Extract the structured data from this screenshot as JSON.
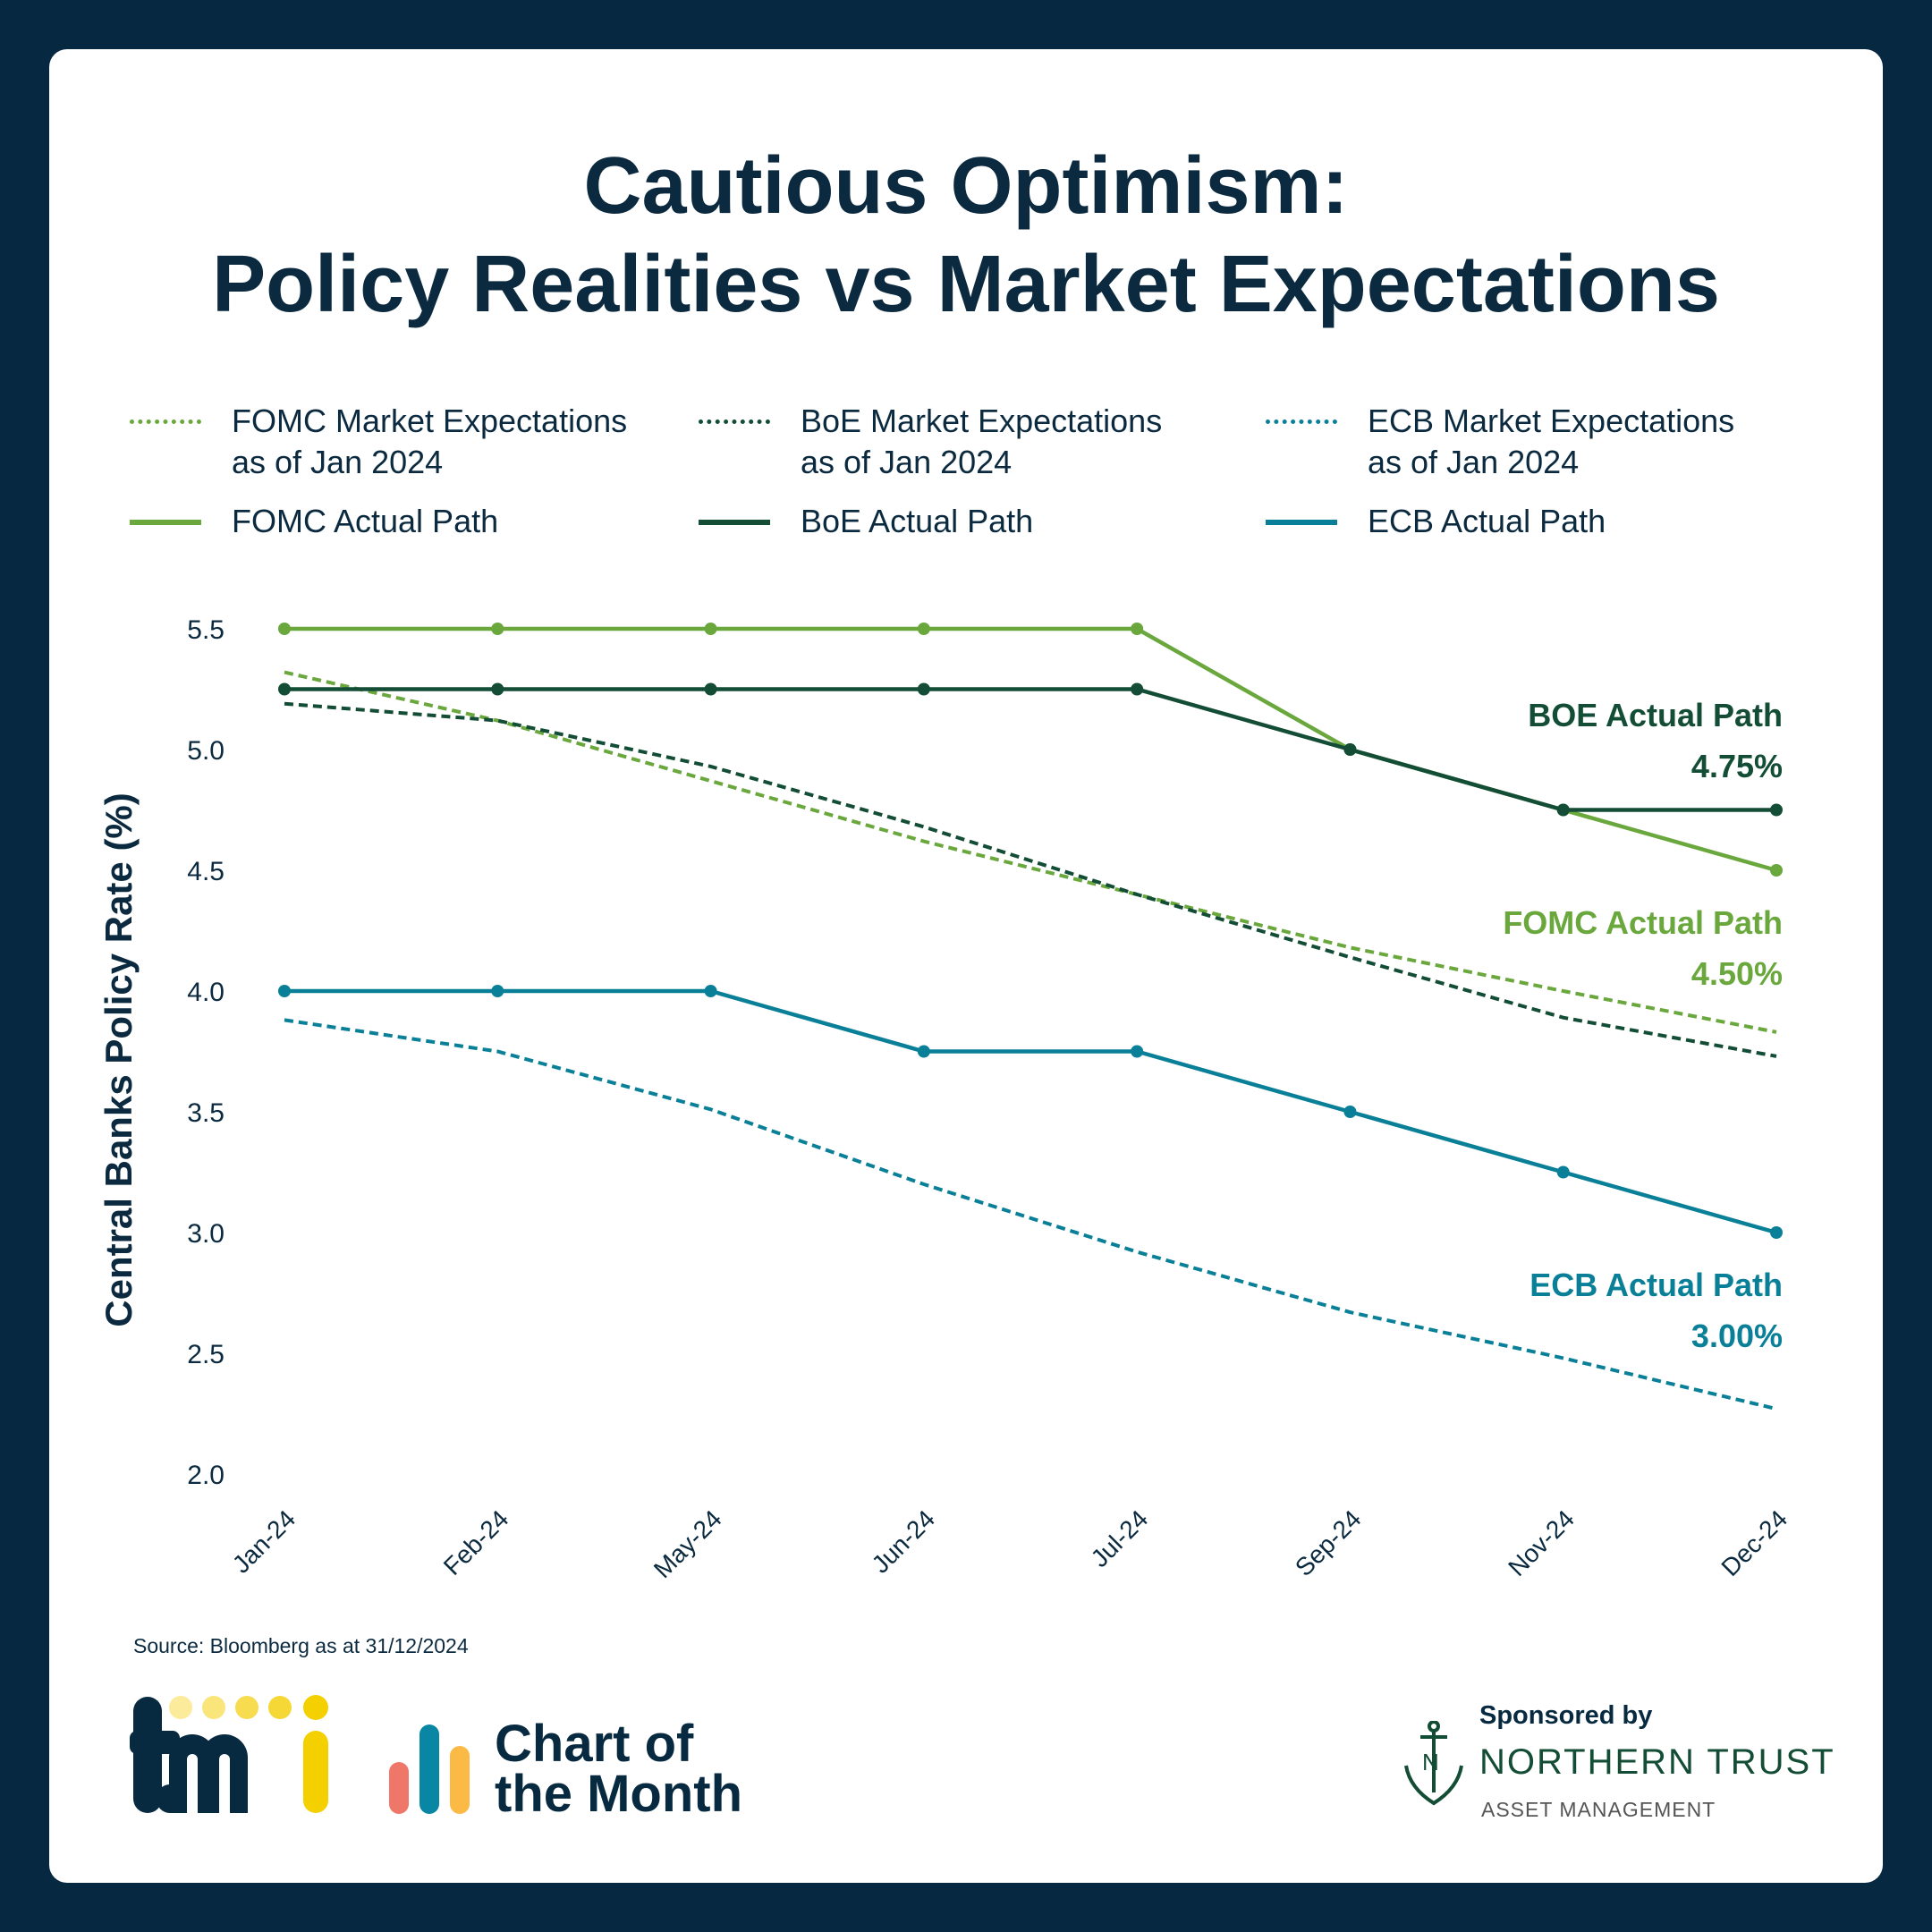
{
  "title": {
    "line1": "Cautious Optimism:",
    "line2": "Policy Realities vs Market Expectations"
  },
  "legend": [
    {
      "label_line1": "FOMC Market Expectations",
      "label_line2": "as of Jan 2024",
      "style": "dotted",
      "color": "#6aa83e"
    },
    {
      "label_line1": "BoE Market Expectations",
      "label_line2": "as of Jan 2024",
      "style": "dotted",
      "color": "#134d36"
    },
    {
      "label_line1": "ECB Market Expectations",
      "label_line2": "as of Jan 2024",
      "style": "dotted",
      "color": "#0a8098"
    },
    {
      "label_line1": "FOMC Actual Path",
      "label_line2": "",
      "style": "solid",
      "color": "#6aa83e"
    },
    {
      "label_line1": "BoE Actual Path",
      "label_line2": "",
      "style": "solid",
      "color": "#134d36"
    },
    {
      "label_line1": "ECB Actual Path",
      "label_line2": "",
      "style": "solid",
      "color": "#0a8098"
    }
  ],
  "chart_data": {
    "type": "line",
    "ylabel": "Central Banks  Policy Rate (%)",
    "xlabel": "",
    "ylim": [
      2.0,
      5.5
    ],
    "yticks": [
      "5.5",
      "5.0",
      "4.5",
      "4.0",
      "3.5",
      "3.0",
      "2.5",
      "2.0"
    ],
    "categories": [
      "Jan-24",
      "Feb-24",
      "May-24",
      "Jun-24",
      "Jul-24",
      "Sep-24",
      "Nov-24",
      "Dec-24"
    ],
    "grid": false,
    "series": [
      {
        "name": "FOMC Market Expectations as of Jan 2024",
        "style": "dashed",
        "color": "#6aa83e",
        "values": [
          5.32,
          5.12,
          4.87,
          4.62,
          4.4,
          4.18,
          4.0,
          3.83
        ]
      },
      {
        "name": "BoE Market Expectations as of Jan 2024",
        "style": "dashed",
        "color": "#134d36",
        "values": [
          5.19,
          5.12,
          4.93,
          4.68,
          4.4,
          4.14,
          3.89,
          3.73
        ]
      },
      {
        "name": "ECB Market Expectations as of Jan 2024",
        "style": "dashed",
        "color": "#0a8098",
        "values": [
          3.88,
          3.75,
          3.51,
          3.2,
          2.92,
          2.67,
          2.48,
          2.27
        ]
      },
      {
        "name": "FOMC Actual Path",
        "style": "solid",
        "color": "#6aa83e",
        "values": [
          5.5,
          5.5,
          5.5,
          5.5,
          5.5,
          5.0,
          4.75,
          4.5
        ]
      },
      {
        "name": "BoE Actual Path",
        "style": "solid",
        "color": "#134d36",
        "values": [
          5.25,
          5.25,
          5.25,
          5.25,
          5.25,
          5.0,
          4.75,
          4.75
        ]
      },
      {
        "name": "ECB Actual Path",
        "style": "solid",
        "color": "#0a8098",
        "values": [
          4.0,
          4.0,
          4.0,
          3.75,
          3.75,
          3.5,
          3.25,
          3.0
        ]
      }
    ],
    "annotations": [
      {
        "label": "BOE Actual Path",
        "value": "4.75%",
        "color": "#134d36"
      },
      {
        "label": "FOMC Actual Path",
        "value": "4.50%",
        "color": "#6aa83e"
      },
      {
        "label": "ECB Actual Path",
        "value": "3.00%",
        "color": "#0a8098"
      }
    ]
  },
  "source": "Source: Bloomberg as at 31/12/2024",
  "footer": {
    "tmi_logo": "tmi",
    "chart_of_month_line1": "Chart of",
    "chart_of_month_line2": "the Month",
    "sponsored_by": "Sponsored by",
    "sponsor_name": "NORTHERN TRUST",
    "sponsor_sub": "ASSET MANAGEMENT"
  }
}
